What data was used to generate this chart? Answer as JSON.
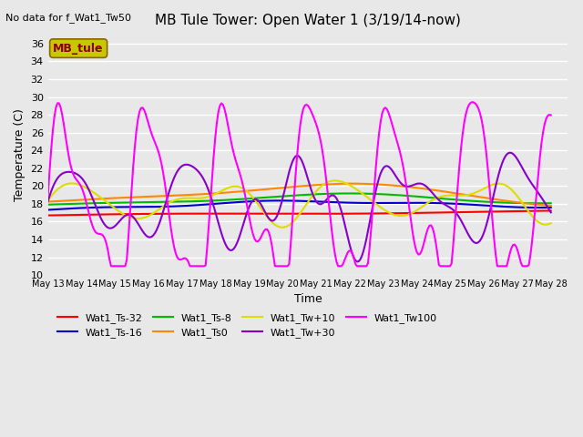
{
  "title": "MB Tule Tower: Open Water 1 (3/19/14-now)",
  "no_data_text": "No data for f_Wat1_Tw50",
  "xlabel": "Time",
  "ylabel": "Temperature (C)",
  "ylim": [
    10,
    37
  ],
  "yticks": [
    10,
    12,
    14,
    16,
    18,
    20,
    22,
    24,
    26,
    28,
    30,
    32,
    34,
    36
  ],
  "xlim": [
    0,
    15.5
  ],
  "xtick_positions": [
    0,
    1,
    2,
    3,
    4,
    5,
    6,
    7,
    8,
    9,
    10,
    11,
    12,
    13,
    14,
    15
  ],
  "xtick_labels": [
    "May 13",
    "May 14",
    "May 15",
    "May 16",
    "May 17",
    "May 18",
    "May 19",
    "May 20",
    "May 21",
    "May 22",
    "May 23",
    "May 24",
    "May 25",
    "May 26",
    "May 27",
    "May 28"
  ],
  "bg_color": "#e8e8e8",
  "legend_label": "MB_tule",
  "legend_box_color": "#c8c800",
  "legend_text_color": "#8b0000",
  "series": [
    {
      "label": "Wat1_Ts-32",
      "color": "#ff0000",
      "lw": 1.5
    },
    {
      "label": "Wat1_Ts-16",
      "color": "#0000cc",
      "lw": 1.5
    },
    {
      "label": "Wat1_Ts-8",
      "color": "#00bb00",
      "lw": 1.5
    },
    {
      "label": "Wat1_Ts0",
      "color": "#ff8800",
      "lw": 1.5
    },
    {
      "label": "Wat1_Tw+10",
      "color": "#dddd00",
      "lw": 1.5
    },
    {
      "label": "Wat1_Tw+30",
      "color": "#8800cc",
      "lw": 1.5
    },
    {
      "label": "Wat1_Tw100",
      "color": "#ff00ff",
      "lw": 1.5
    }
  ]
}
